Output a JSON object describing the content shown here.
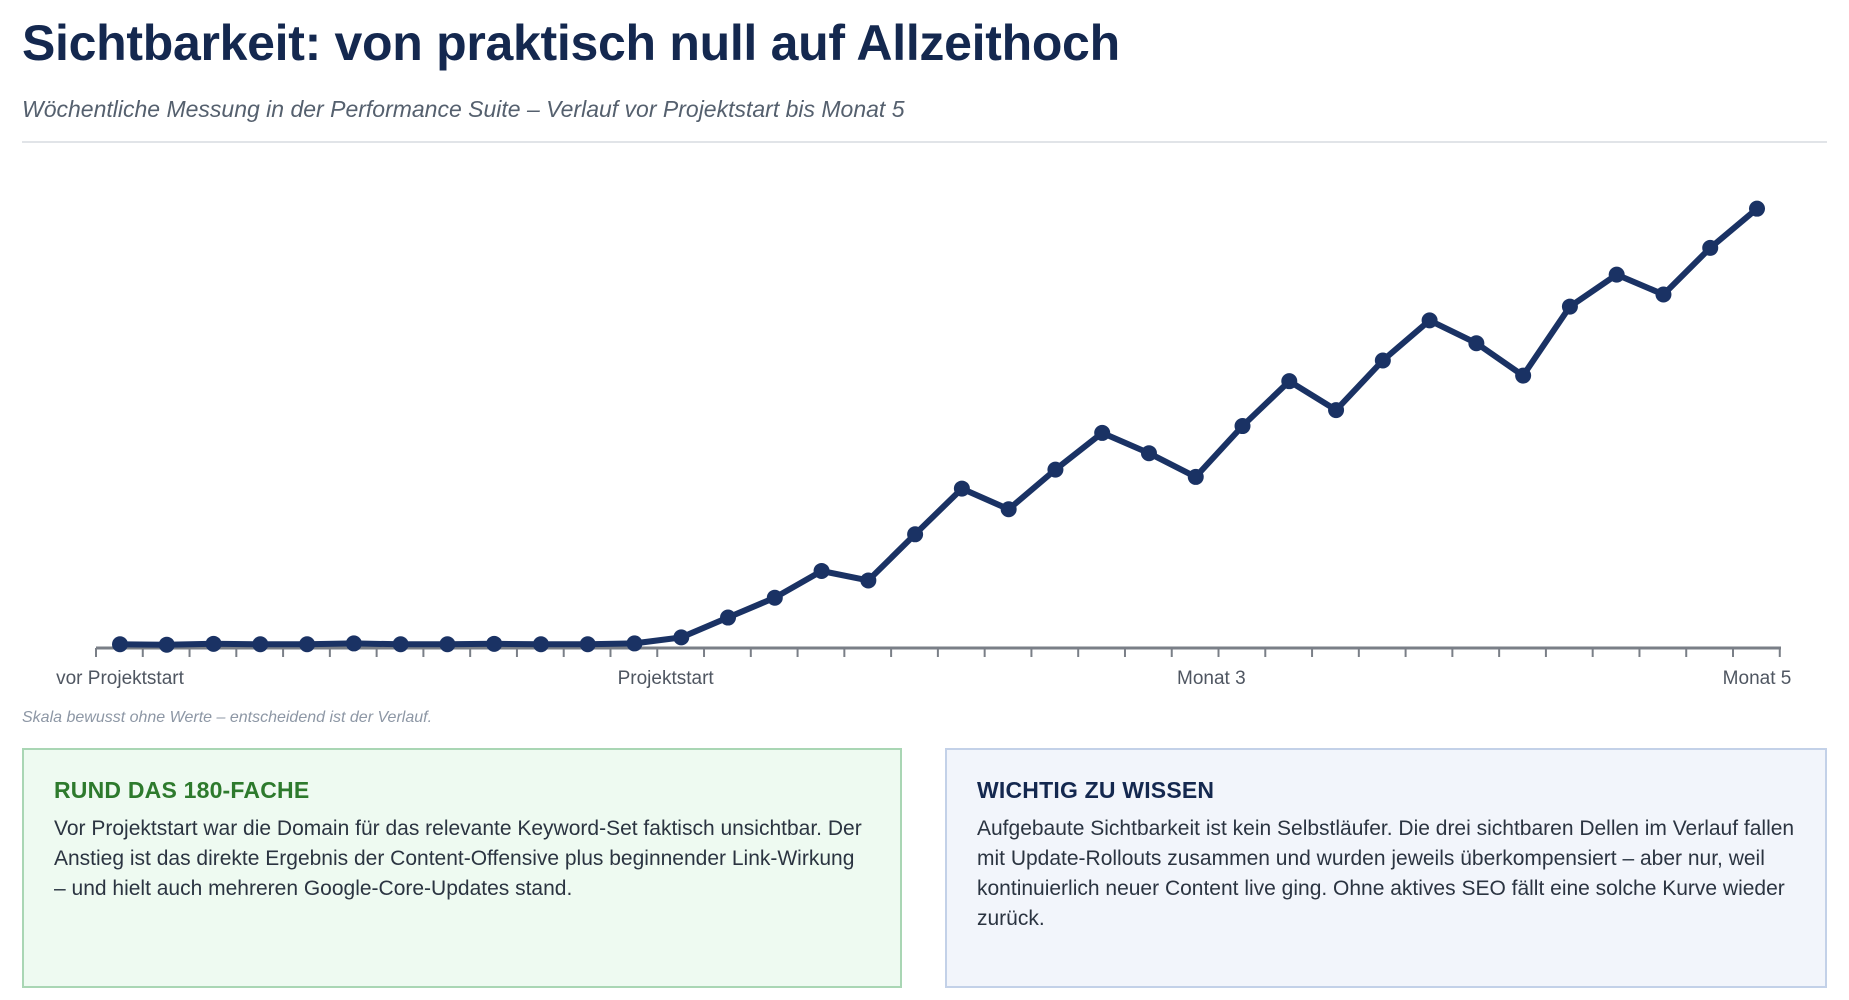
{
  "header": {
    "title": "Sichtbarkeit: von praktisch null auf Allzeithoch",
    "subtitle": "Wöchentliche Messung in der Performance Suite – Verlauf vor Projektstart bis Monat 5"
  },
  "chart_data": {
    "type": "line",
    "x_labels": [
      "vor Projektstart",
      "Projektstart",
      "Monat 3",
      "Monat 5"
    ],
    "y_axis_shown": false,
    "grid": false,
    "series": [
      {
        "values": [
          0.4,
          0.3,
          0.5,
          0.4,
          0.4,
          0.6,
          0.4,
          0.4,
          0.5,
          0.4,
          0.4,
          0.6,
          2.0,
          6.6,
          11.2,
          17.4,
          15.2,
          25.9,
          36.5,
          31.7,
          40.9,
          49.4,
          44.7,
          39.2,
          51.0,
          61.4,
          54.7,
          66.2,
          75.5,
          70.2,
          62.7,
          78.7,
          86.1,
          81.5,
          92.3,
          101.4
        ],
        "color": "#1a3264"
      }
    ],
    "ylim": [
      0,
      115
    ]
  },
  "note": "Skala bewusst ohne Werte – entscheidend ist der Verlauf.",
  "cards": {
    "left": {
      "heading": "RUND DAS 180-FACHE",
      "text": "Vor Projektstart war die Domain für das relevante Keyword-Set faktisch unsichtbar. Der Anstieg ist das direkte Ergebnis der Content-Offensive plus beginnender Link-Wirkung – und hielt auch mehreren Google-Core-Updates stand."
    },
    "right": {
      "heading": "WICHTIG ZU WISSEN",
      "text": "Aufgebaute Sichtbarkeit ist kein Selbstläufer. Die drei sichtbaren Dellen im Verlauf fallen mit Update-Rollouts zusammen und wurden jeweils überkompensiert – aber nur, weil kontinuierlich neuer Content live ging. Ohne aktives SEO fällt eine solche Kurve wieder zurück."
    }
  },
  "colors": {
    "line": "#1a3264",
    "axis": "#7a7f87",
    "accent_green": "#2d7a2d",
    "accent_navy": "#14284f"
  }
}
